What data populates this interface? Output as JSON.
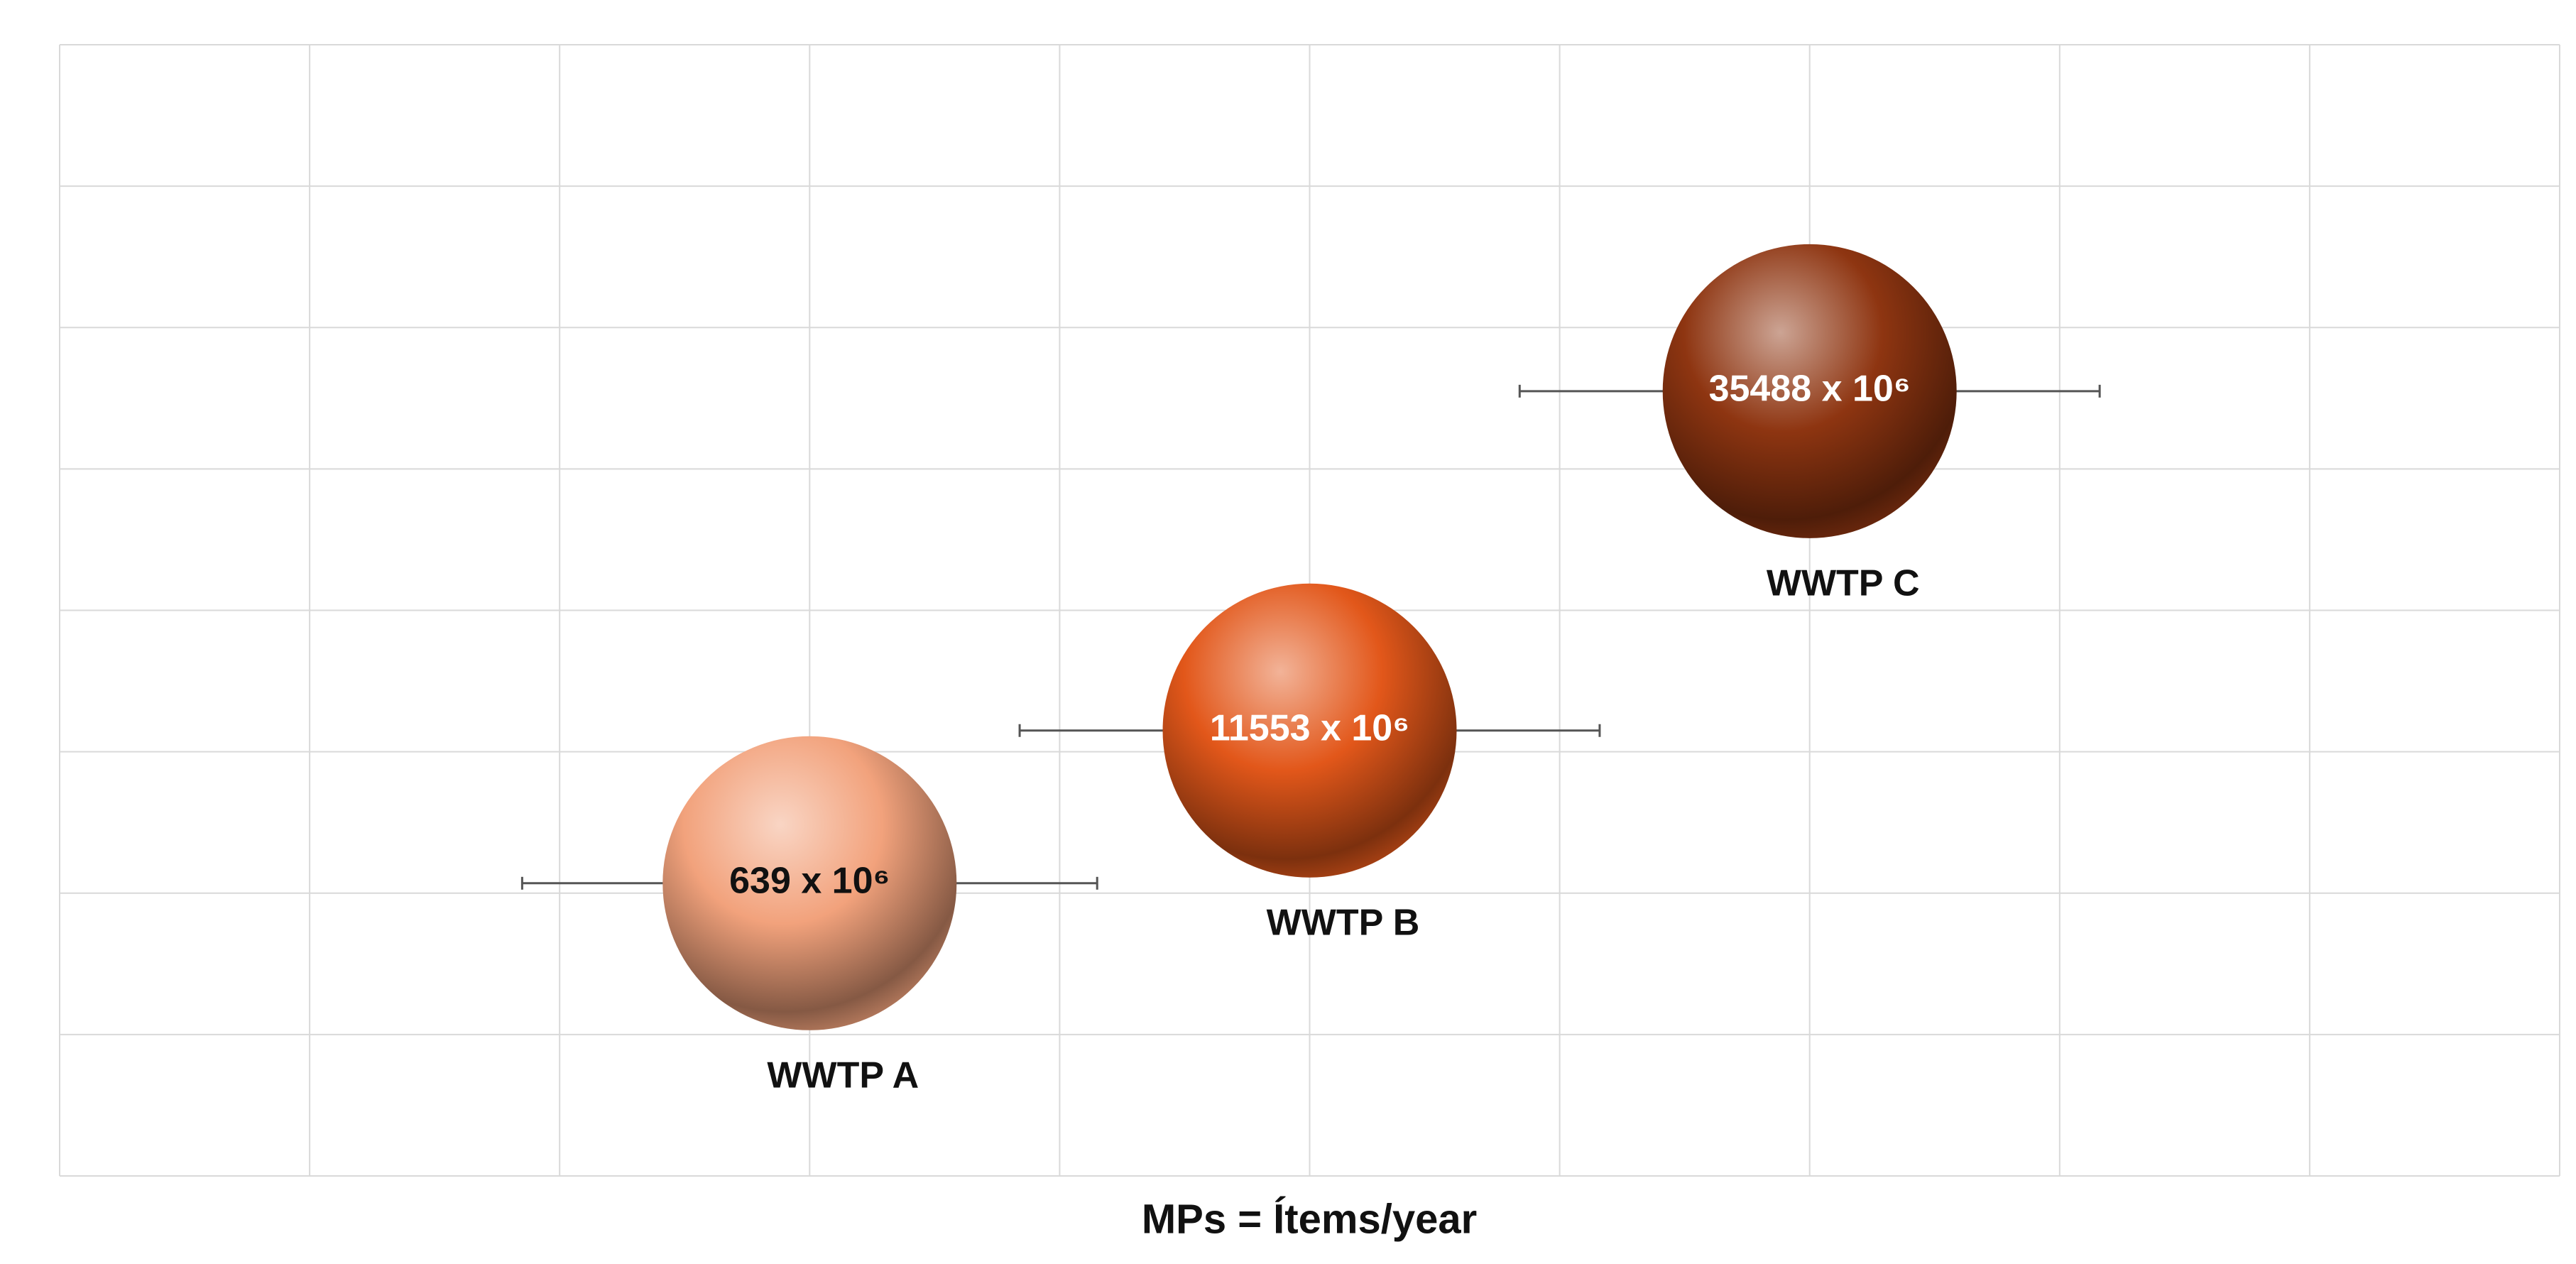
{
  "chart_data": {
    "type": "bubble",
    "xlabel": "MPs = Ítems/year",
    "xlim": [
      0,
      10
    ],
    "xticks": [
      0,
      1,
      2,
      3,
      4,
      5,
      6,
      7,
      8,
      9,
      10
    ],
    "ylim": [
      0,
      8
    ],
    "yticks": [
      0,
      1,
      2,
      3,
      4,
      5,
      6,
      7,
      8
    ],
    "grid": true,
    "series": [
      {
        "name": "WWTP A",
        "color": "#f2a27c",
        "label_color": "#111111",
        "x": 3,
        "y": 2.07,
        "xerr": 1.15,
        "value_label": "639 x 10⁶"
      },
      {
        "name": "WWTP B",
        "color": "#e2571a",
        "label_color": "#ffffff",
        "x": 5,
        "y": 3.15,
        "xerr": 1.16,
        "value_label": "11553 x 10⁶"
      },
      {
        "name": "WWTP C",
        "color": "#8e3511",
        "label_color": "#ffffff",
        "x": 7,
        "y": 5.55,
        "xerr": 1.16,
        "value_label": "35488 x 10⁶"
      }
    ]
  }
}
